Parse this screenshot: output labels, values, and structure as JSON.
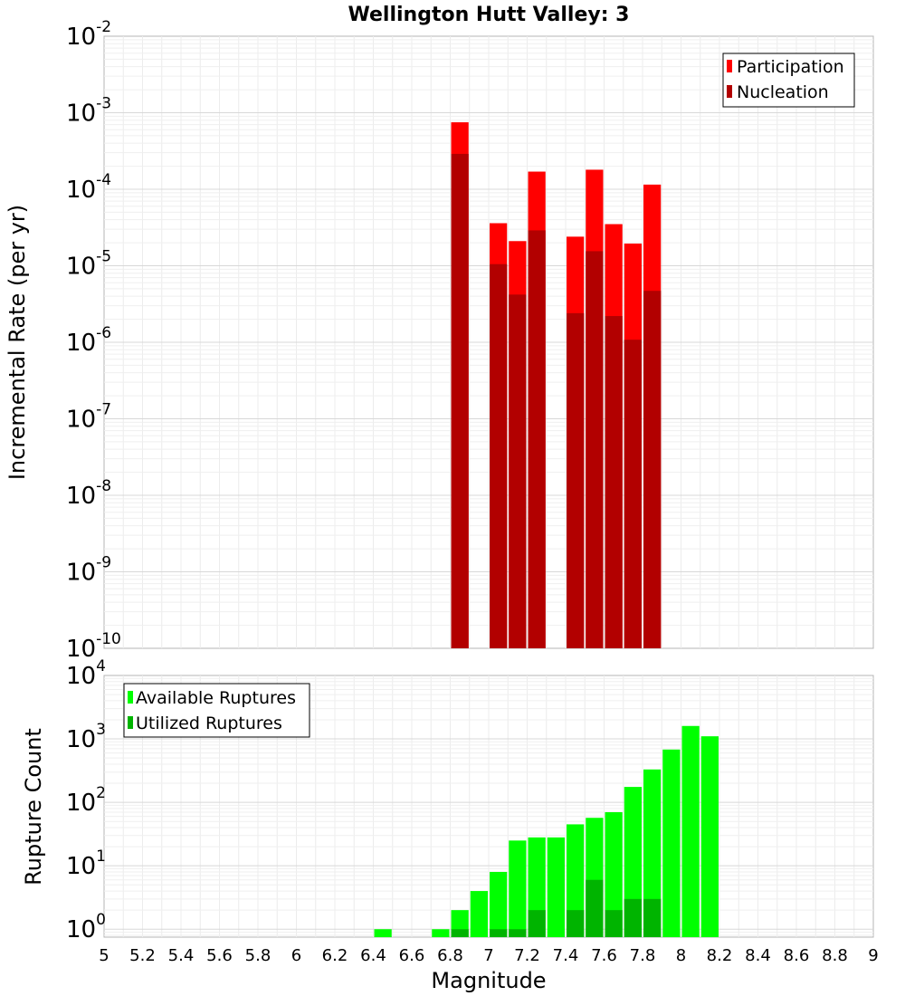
{
  "chart_data": [
    {
      "type": "bar",
      "title": "Wellington Hutt Valley: 3",
      "xlabel": "",
      "ylabel": "Incremental Rate (per yr)",
      "xlim": [
        5,
        9
      ],
      "ylim": [
        1e-10,
        0.01
      ],
      "yscale": "log",
      "grid": true,
      "legend_position": "top-right",
      "bin_width": 0.1,
      "y_ticks": [
        {
          "base": "10",
          "exp": "-2",
          "value": 0.01
        },
        {
          "base": "10",
          "exp": "-3",
          "value": 0.001
        },
        {
          "base": "10",
          "exp": "-4",
          "value": 0.0001
        },
        {
          "base": "10",
          "exp": "-5",
          "value": 1e-05
        },
        {
          "base": "10",
          "exp": "-6",
          "value": 1e-06
        },
        {
          "base": "10",
          "exp": "-7",
          "value": 1e-07
        },
        {
          "base": "10",
          "exp": "-8",
          "value": 1e-08
        },
        {
          "base": "10",
          "exp": "-9",
          "value": 1e-09
        },
        {
          "base": "10",
          "exp": "-10",
          "value": 1e-10
        }
      ],
      "series": [
        {
          "name": "Participation",
          "color": "#ff0000",
          "x": [
            6.85,
            7.05,
            7.15,
            7.25,
            7.45,
            7.55,
            7.65,
            7.75,
            7.85
          ],
          "values": [
            0.00075,
            3.6e-05,
            2.1e-05,
            0.00017,
            2.4e-05,
            0.00018,
            3.5e-05,
            1.95e-05,
            0.000115
          ]
        },
        {
          "name": "Nucleation",
          "color": "#b20000",
          "x": [
            6.85,
            7.05,
            7.15,
            7.25,
            7.45,
            7.55,
            7.65,
            7.75,
            7.85
          ],
          "values": [
            0.00029,
            1.05e-05,
            4.2e-06,
            2.9e-05,
            2.4e-06,
            1.55e-05,
            2.2e-06,
            1.08e-06,
            4.7e-06
          ]
        }
      ]
    },
    {
      "type": "bar",
      "title": "",
      "xlabel": "Magnitude",
      "ylabel": "Rupture Count",
      "xlim": [
        5,
        9
      ],
      "ylim": [
        0.75,
        10000
      ],
      "yscale": "log",
      "grid": true,
      "legend_position": "top-left",
      "bin_width": 0.1,
      "x_ticks": [
        "5",
        "5.2",
        "5.4",
        "5.6",
        "5.8",
        "6",
        "6.2",
        "6.4",
        "6.6",
        "6.8",
        "7",
        "7.2",
        "7.4",
        "7.6",
        "7.8",
        "8",
        "8.2",
        "8.4",
        "8.6",
        "8.8",
        "9"
      ],
      "y_ticks": [
        {
          "base": "10",
          "exp": "4",
          "value": 10000
        },
        {
          "base": "10",
          "exp": "3",
          "value": 1000
        },
        {
          "base": "10",
          "exp": "2",
          "value": 100
        },
        {
          "base": "10",
          "exp": "1",
          "value": 10
        },
        {
          "base": "10",
          "exp": "0",
          "value": 1
        }
      ],
      "series": [
        {
          "name": "Available Ruptures",
          "color": "#00ff00",
          "x": [
            6.45,
            6.75,
            6.85,
            6.95,
            7.05,
            7.15,
            7.25,
            7.35,
            7.45,
            7.55,
            7.65,
            7.75,
            7.85,
            7.95,
            8.05,
            8.15
          ],
          "values": [
            1,
            1,
            2,
            4,
            8,
            25,
            28,
            28,
            45,
            57,
            70,
            175,
            330,
            680,
            1600,
            1100
          ]
        },
        {
          "name": "Utilized Ruptures",
          "color": "#00b400",
          "x": [
            6.85,
            7.05,
            7.15,
            7.25,
            7.45,
            7.55,
            7.65,
            7.75,
            7.85
          ],
          "values": [
            1,
            1,
            1,
            2,
            2,
            6,
            2,
            3,
            3
          ]
        }
      ]
    }
  ]
}
